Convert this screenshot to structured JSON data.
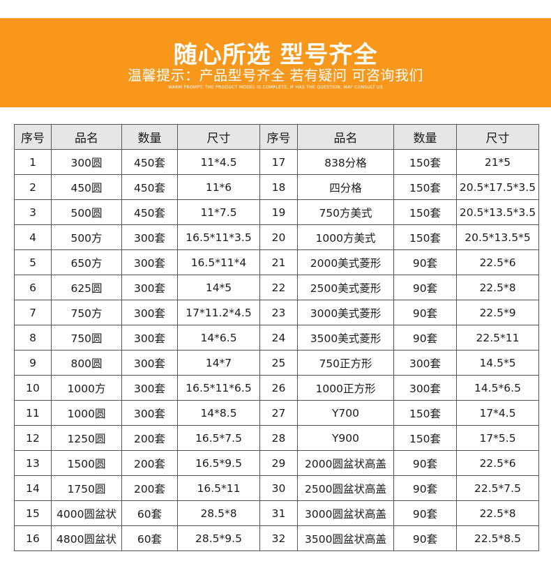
{
  "banner": {
    "title": "随心所选 型号齐全",
    "subtitle": "温馨提示：产品型号齐全 若有疑问 可咨询我们",
    "note": "WARM PROMPT: THE PRODUCT MODEL IS COMPLETE, IF HAS THE QUESTION, MAY CONSULT US",
    "color": "#f7981d"
  },
  "table": {
    "headers": [
      "序号",
      "品名",
      "数量",
      "尺寸",
      "序号",
      "品名",
      "数量",
      "尺寸"
    ],
    "rows": [
      [
        "1",
        "300圆",
        "450套",
        "11*4.5",
        "17",
        "838分格",
        "150套",
        "21*5"
      ],
      [
        "2",
        "450圆",
        "450套",
        "11*6",
        "18",
        "四分格",
        "150套",
        "20.5*17.5*3.5"
      ],
      [
        "3",
        "500圆",
        "450套",
        "11*7.5",
        "19",
        "750方美式",
        "150套",
        "20.5*13.5*3.5"
      ],
      [
        "4",
        "500方",
        "300套",
        "16.5*11*3.5",
        "20",
        "1000方美式",
        "150套",
        "20.5*13.5*5"
      ],
      [
        "5",
        "650方",
        "300套",
        "16.5*11*4",
        "21",
        "2000美式菱形",
        "90套",
        "22.5*6"
      ],
      [
        "6",
        "625圆",
        "300套",
        "14*5",
        "22",
        "2500美式菱形",
        "90套",
        "22.5*8"
      ],
      [
        "7",
        "750方",
        "300套",
        "17*11.2*4.5",
        "23",
        "3000美式菱形",
        "90套",
        "22.5*9"
      ],
      [
        "8",
        "750圆",
        "300套",
        "14*6.5",
        "24",
        "3500美式菱形",
        "90套",
        "22.5*11"
      ],
      [
        "9",
        "800圆",
        "300套",
        "14*7",
        "25",
        "750正方形",
        "300套",
        "14.5*5"
      ],
      [
        "10",
        "1000方",
        "300套",
        "16.5*11*6.5",
        "26",
        "1000正方形",
        "300套",
        "14.5*6.5"
      ],
      [
        "11",
        "1000圆",
        "300套",
        "14*8.5",
        "27",
        "Y700",
        "150套",
        "17*4.5"
      ],
      [
        "12",
        "1250圆",
        "200套",
        "16.5*7.5",
        "28",
        "Y900",
        "150套",
        "17*5.5"
      ],
      [
        "13",
        "1500圆",
        "200套",
        "16.5*9.5",
        "29",
        "2000圆盆状高盖",
        "90套",
        "22.5*6"
      ],
      [
        "14",
        "1750圆",
        "200套",
        "16.5*11",
        "30",
        "2500圆盆状高盖",
        "90套",
        "22.5*7.5"
      ],
      [
        "15",
        "4000圆盆状",
        "60套",
        "28.5*8",
        "31",
        "3000圆盆状高盖",
        "90套",
        "22.5*8"
      ],
      [
        "16",
        "4800圆盆状",
        "60套",
        "28.5*9.5",
        "32",
        "3500圆盆状高盖",
        "90套",
        "22.5*8.5"
      ]
    ]
  }
}
